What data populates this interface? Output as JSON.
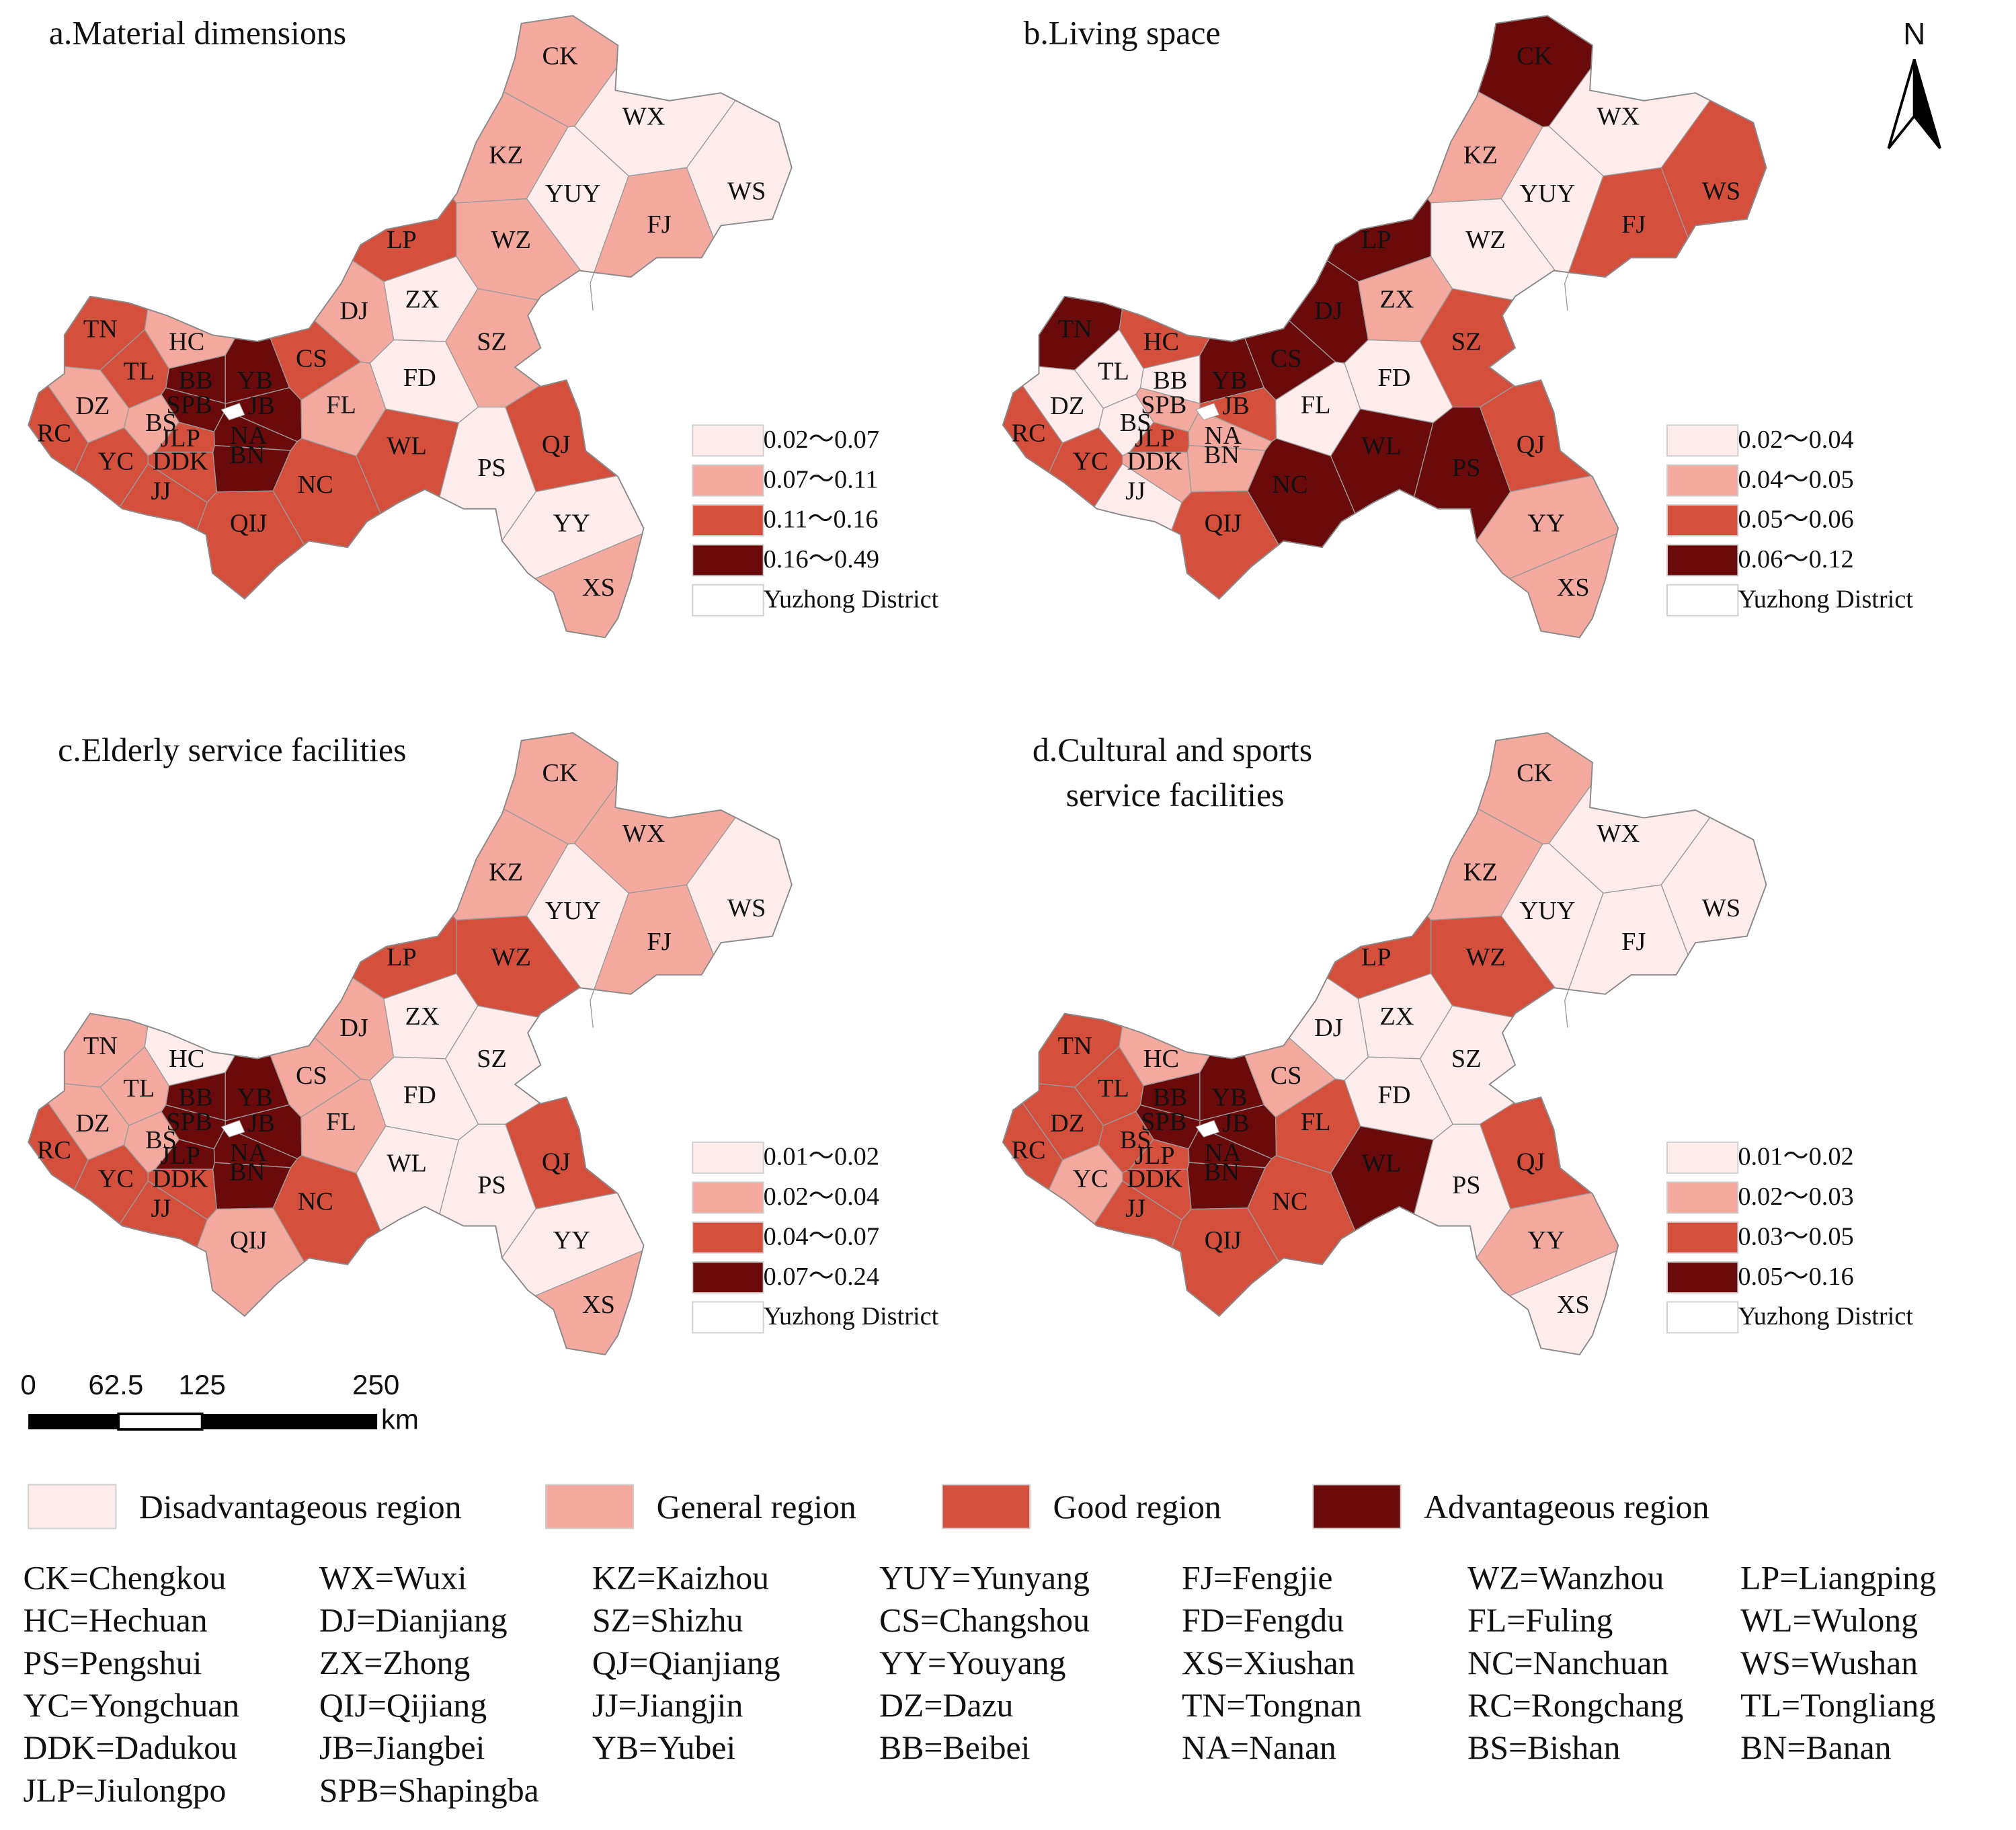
{
  "north": "N",
  "scale_bar": {
    "ticks": [
      "0",
      "62.5",
      "125",
      "250"
    ],
    "unit": "km"
  },
  "panels": [
    {
      "title": [
        "a.Material dimensions"
      ],
      "legend": [
        {
          "label": "0.02～0.07",
          "color": "#fdeceb"
        },
        {
          "label": "0.07～0.11",
          "color": "#f4a99e"
        },
        {
          "label": "0.11～0.16",
          "color": "#d4503d"
        },
        {
          "label": "0.16～0.49",
          "color": "#6b0a0a"
        },
        {
          "label": "Yuzhong District",
          "color": "#ffffff"
        }
      ],
      "districts": [
        {
          "label": "CK",
          "color": "#f4a99e"
        },
        {
          "label": "WX",
          "color": "#fdeceb"
        },
        {
          "label": "KZ",
          "color": "#f4a99e"
        },
        {
          "label": "YUY",
          "color": "#fdeceb"
        },
        {
          "label": "WS",
          "color": "#fdeceb"
        },
        {
          "label": "FJ",
          "color": "#f4a99e"
        },
        {
          "label": "WZ",
          "color": "#f4a99e"
        },
        {
          "label": "LP",
          "color": "#d4503d"
        },
        {
          "label": "DJ",
          "color": "#f4a99e"
        },
        {
          "label": "ZX",
          "color": "#fdeceb"
        },
        {
          "label": "SZ",
          "color": "#f4a99e"
        },
        {
          "label": "TN",
          "color": "#d4503d"
        },
        {
          "label": "HC",
          "color": "#f4a99e"
        },
        {
          "label": "CS",
          "color": "#d4503d"
        },
        {
          "label": "YB",
          "color": "#6b0a0a"
        },
        {
          "label": "BB",
          "color": "#6b0a0a"
        },
        {
          "label": "FD",
          "color": "#fdeceb"
        },
        {
          "label": "TL",
          "color": "#d4503d"
        },
        {
          "label": "DZ",
          "color": "#f4a99e"
        },
        {
          "label": "JB",
          "color": "#6b0a0a"
        },
        {
          "label": "SPB",
          "color": "#6b0a0a"
        },
        {
          "label": "FL",
          "color": "#f4a99e"
        },
        {
          "label": "BS",
          "color": "#f4a99e"
        },
        {
          "label": "JLP",
          "color": "#d4503d"
        },
        {
          "label": "NA",
          "color": "#6b0a0a"
        },
        {
          "label": "RC",
          "color": "#d4503d"
        },
        {
          "label": "QJ",
          "color": "#d4503d"
        },
        {
          "label": "YC",
          "color": "#d4503d"
        },
        {
          "label": "DDK",
          "color": "#d4503d"
        },
        {
          "label": "BN",
          "color": "#6b0a0a"
        },
        {
          "label": "WL",
          "color": "#d4503d"
        },
        {
          "label": "PS",
          "color": "#fdeceb"
        },
        {
          "label": "NC",
          "color": "#d4503d"
        },
        {
          "label": "JJ",
          "color": "#d4503d"
        },
        {
          "label": "YY",
          "color": "#fdeceb"
        },
        {
          "label": "QIJ",
          "color": "#d4503d"
        },
        {
          "label": "XS",
          "color": "#f4a99e"
        }
      ]
    },
    {
      "title": [
        "b.Living space"
      ],
      "legend": [
        {
          "label": "0.02～0.04",
          "color": "#fdeceb"
        },
        {
          "label": "0.04～0.05",
          "color": "#f4a99e"
        },
        {
          "label": "0.05～0.06",
          "color": "#d4503d"
        },
        {
          "label": "0.06～0.12",
          "color": "#6b0a0a"
        },
        {
          "label": "Yuzhong District",
          "color": "#ffffff"
        }
      ],
      "districts": [
        {
          "label": "CK",
          "color": "#6b0a0a"
        },
        {
          "label": "WX",
          "color": "#fdeceb"
        },
        {
          "label": "KZ",
          "color": "#f4a99e"
        },
        {
          "label": "YUY",
          "color": "#fdeceb"
        },
        {
          "label": "WS",
          "color": "#d4503d"
        },
        {
          "label": "FJ",
          "color": "#d4503d"
        },
        {
          "label": "WZ",
          "color": "#fdeceb"
        },
        {
          "label": "LP",
          "color": "#6b0a0a"
        },
        {
          "label": "DJ",
          "color": "#6b0a0a"
        },
        {
          "label": "ZX",
          "color": "#f4a99e"
        },
        {
          "label": "SZ",
          "color": "#d4503d"
        },
        {
          "label": "TN",
          "color": "#6b0a0a"
        },
        {
          "label": "HC",
          "color": "#d4503d"
        },
        {
          "label": "CS",
          "color": "#6b0a0a"
        },
        {
          "label": "YB",
          "color": "#6b0a0a"
        },
        {
          "label": "BB",
          "color": "#fdeceb"
        },
        {
          "label": "FD",
          "color": "#fdeceb"
        },
        {
          "label": "TL",
          "color": "#fdeceb"
        },
        {
          "label": "DZ",
          "color": "#fdeceb"
        },
        {
          "label": "JB",
          "color": "#d4503d"
        },
        {
          "label": "SPB",
          "color": "#f4a99e"
        },
        {
          "label": "FL",
          "color": "#fdeceb"
        },
        {
          "label": "BS",
          "color": "#fdeceb"
        },
        {
          "label": "JLP",
          "color": "#d4503d"
        },
        {
          "label": "NA",
          "color": "#f4a99e"
        },
        {
          "label": "RC",
          "color": "#d4503d"
        },
        {
          "label": "QJ",
          "color": "#d4503d"
        },
        {
          "label": "YC",
          "color": "#d4503d"
        },
        {
          "label": "DDK",
          "color": "#f4a99e"
        },
        {
          "label": "BN",
          "color": "#f4a99e"
        },
        {
          "label": "WL",
          "color": "#6b0a0a"
        },
        {
          "label": "PS",
          "color": "#6b0a0a"
        },
        {
          "label": "NC",
          "color": "#6b0a0a"
        },
        {
          "label": "JJ",
          "color": "#fdeceb"
        },
        {
          "label": "YY",
          "color": "#f4a99e"
        },
        {
          "label": "QIJ",
          "color": "#d4503d"
        },
        {
          "label": "XS",
          "color": "#f4a99e"
        }
      ]
    },
    {
      "title": [
        "c.Elderly service facilities"
      ],
      "legend": [
        {
          "label": "0.01～0.02",
          "color": "#fdeceb"
        },
        {
          "label": "0.02～0.04",
          "color": "#f4a99e"
        },
        {
          "label": "0.04～0.07",
          "color": "#d4503d"
        },
        {
          "label": "0.07～0.24",
          "color": "#6b0a0a"
        },
        {
          "label": "Yuzhong District",
          "color": "#ffffff"
        }
      ],
      "districts": [
        {
          "label": "CK",
          "color": "#f4a99e"
        },
        {
          "label": "WX",
          "color": "#f4a99e"
        },
        {
          "label": "KZ",
          "color": "#f4a99e"
        },
        {
          "label": "YUY",
          "color": "#fdeceb"
        },
        {
          "label": "WS",
          "color": "#fdeceb"
        },
        {
          "label": "FJ",
          "color": "#f4a99e"
        },
        {
          "label": "WZ",
          "color": "#d4503d"
        },
        {
          "label": "LP",
          "color": "#d4503d"
        },
        {
          "label": "DJ",
          "color": "#f4a99e"
        },
        {
          "label": "ZX",
          "color": "#fdeceb"
        },
        {
          "label": "SZ",
          "color": "#fdeceb"
        },
        {
          "label": "TN",
          "color": "#f4a99e"
        },
        {
          "label": "HC",
          "color": "#fdeceb"
        },
        {
          "label": "CS",
          "color": "#f4a99e"
        },
        {
          "label": "YB",
          "color": "#6b0a0a"
        },
        {
          "label": "BB",
          "color": "#6b0a0a"
        },
        {
          "label": "FD",
          "color": "#fdeceb"
        },
        {
          "label": "TL",
          "color": "#f4a99e"
        },
        {
          "label": "DZ",
          "color": "#f4a99e"
        },
        {
          "label": "JB",
          "color": "#6b0a0a"
        },
        {
          "label": "SPB",
          "color": "#6b0a0a"
        },
        {
          "label": "FL",
          "color": "#f4a99e"
        },
        {
          "label": "BS",
          "color": "#f4a99e"
        },
        {
          "label": "JLP",
          "color": "#6b0a0a"
        },
        {
          "label": "NA",
          "color": "#6b0a0a"
        },
        {
          "label": "RC",
          "color": "#d4503d"
        },
        {
          "label": "QJ",
          "color": "#d4503d"
        },
        {
          "label": "YC",
          "color": "#d4503d"
        },
        {
          "label": "DDK",
          "color": "#d4503d"
        },
        {
          "label": "BN",
          "color": "#6b0a0a"
        },
        {
          "label": "WL",
          "color": "#fdeceb"
        },
        {
          "label": "PS",
          "color": "#fdeceb"
        },
        {
          "label": "NC",
          "color": "#d4503d"
        },
        {
          "label": "JJ",
          "color": "#d4503d"
        },
        {
          "label": "YY",
          "color": "#fdeceb"
        },
        {
          "label": "QIJ",
          "color": "#f4a99e"
        },
        {
          "label": "XS",
          "color": "#f4a99e"
        }
      ]
    },
    {
      "title": [
        "d.Cultural and sports",
        "service facilities"
      ],
      "legend": [
        {
          "label": "0.01～0.02",
          "color": "#fdeceb"
        },
        {
          "label": "0.02～0.03",
          "color": "#f4a99e"
        },
        {
          "label": "0.03～0.05",
          "color": "#d4503d"
        },
        {
          "label": "0.05～0.16",
          "color": "#6b0a0a"
        },
        {
          "label": "Yuzhong District",
          "color": "#ffffff"
        }
      ],
      "districts": [
        {
          "label": "CK",
          "color": "#f4a99e"
        },
        {
          "label": "WX",
          "color": "#fdeceb"
        },
        {
          "label": "KZ",
          "color": "#f4a99e"
        },
        {
          "label": "YUY",
          "color": "#fdeceb"
        },
        {
          "label": "WS",
          "color": "#fdeceb"
        },
        {
          "label": "FJ",
          "color": "#fdeceb"
        },
        {
          "label": "WZ",
          "color": "#d4503d"
        },
        {
          "label": "LP",
          "color": "#d4503d"
        },
        {
          "label": "DJ",
          "color": "#fdeceb"
        },
        {
          "label": "ZX",
          "color": "#fdeceb"
        },
        {
          "label": "SZ",
          "color": "#fdeceb"
        },
        {
          "label": "TN",
          "color": "#d4503d"
        },
        {
          "label": "HC",
          "color": "#f4a99e"
        },
        {
          "label": "CS",
          "color": "#f4a99e"
        },
        {
          "label": "YB",
          "color": "#6b0a0a"
        },
        {
          "label": "BB",
          "color": "#6b0a0a"
        },
        {
          "label": "FD",
          "color": "#fdeceb"
        },
        {
          "label": "TL",
          "color": "#d4503d"
        },
        {
          "label": "DZ",
          "color": "#d4503d"
        },
        {
          "label": "JB",
          "color": "#6b0a0a"
        },
        {
          "label": "SPB",
          "color": "#6b0a0a"
        },
        {
          "label": "FL",
          "color": "#d4503d"
        },
        {
          "label": "BS",
          "color": "#d4503d"
        },
        {
          "label": "JLP",
          "color": "#d4503d"
        },
        {
          "label": "NA",
          "color": "#6b0a0a"
        },
        {
          "label": "RC",
          "color": "#d4503d"
        },
        {
          "label": "QJ",
          "color": "#d4503d"
        },
        {
          "label": "YC",
          "color": "#f4a99e"
        },
        {
          "label": "DDK",
          "color": "#d4503d"
        },
        {
          "label": "BN",
          "color": "#6b0a0a"
        },
        {
          "label": "WL",
          "color": "#6b0a0a"
        },
        {
          "label": "PS",
          "color": "#fdeceb"
        },
        {
          "label": "NC",
          "color": "#d4503d"
        },
        {
          "label": "JJ",
          "color": "#d4503d"
        },
        {
          "label": "YY",
          "color": "#f4a99e"
        },
        {
          "label": "QIJ",
          "color": "#d4503d"
        },
        {
          "label": "XS",
          "color": "#fdeceb"
        }
      ]
    }
  ],
  "region_legend": [
    {
      "label": "Disadvantageous region",
      "color": "#fdeceb"
    },
    {
      "label": "General region",
      "color": "#f4a99e"
    },
    {
      "label": "Good region",
      "color": "#d4503d"
    },
    {
      "label": "Advantageous region",
      "color": "#6b0a0a"
    }
  ],
  "abbreviations": [
    "CK=Chengkou",
    "WX=Wuxi",
    "KZ=Kaizhou",
    "YUY=Yunyang",
    "FJ=Fengjie",
    "WZ=Wanzhou",
    "LP=Liangping",
    "HC=Hechuan",
    "DJ=Dianjiang",
    "SZ=Shizhu",
    "CS=Changshou",
    "FD=Fengdu",
    "FL=Fuling",
    "WL=Wulong",
    "PS=Pengshui",
    "ZX=Zhong",
    "QJ=Qianjiang",
    "YY=Youyang",
    "XS=Xiushan",
    "NC=Nanchuan",
    "WS=Wushan",
    "YC=Yongchuan",
    "QIJ=Qijiang",
    "JJ=Jiangjin",
    "DZ=Dazu",
    "TN=Tongnan",
    "RC=Rongchang",
    "TL=Tongliang",
    "DDK=Dadukou",
    "JB=Jiangbei",
    "YB=Yubei",
    "BB=Beibei",
    "NA=Nanan",
    "BS=Bishan",
    "BN=Banan",
    "JLP=Jiulongpo",
    "SPB=Shapingba"
  ]
}
